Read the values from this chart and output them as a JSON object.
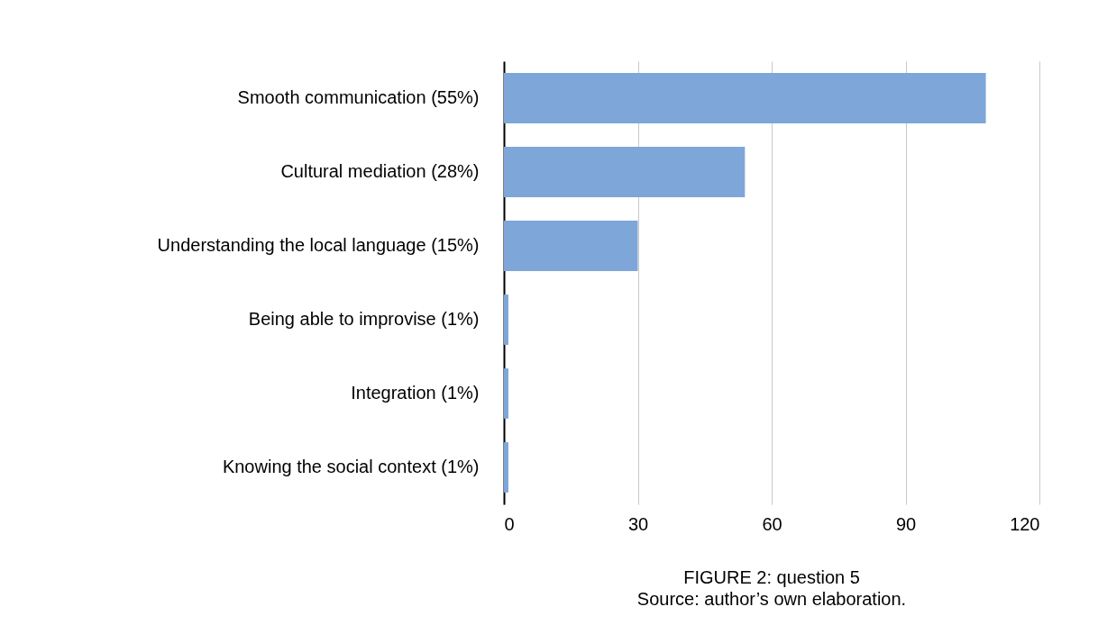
{
  "chart_data": {
    "type": "bar",
    "orientation": "horizontal",
    "title": "FIGURE 2: question 5",
    "annotations": [
      "Source: author’s own elaboration."
    ],
    "categories": [
      "Smooth communication (55%)",
      "Cultural mediation (28%)",
      "Understanding the local language (15%)",
      "Being able to improvise (1%)",
      "Integration (1%)",
      "Knowing the social context (1%)"
    ],
    "values": [
      108,
      54,
      30,
      1,
      1,
      1
    ],
    "color": "#7ea6d8",
    "xlim": [
      0,
      120
    ],
    "xticks": [
      0,
      30,
      60,
      90,
      120
    ],
    "grid": "x"
  }
}
